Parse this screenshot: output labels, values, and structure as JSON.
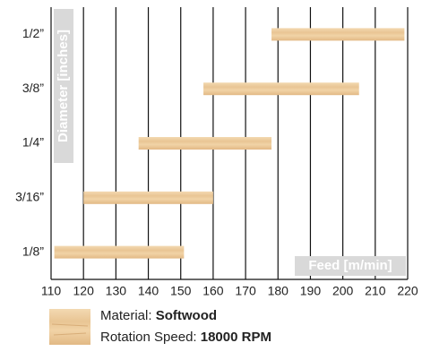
{
  "chart_data": {
    "type": "range-bar",
    "y_label": "Diameter [inches]",
    "x_label": "Feed [m/min]",
    "categories": [
      "1/8”",
      "3/16”",
      "1/4”",
      "3/8”",
      "1/2”"
    ],
    "values": [
      [
        111,
        151
      ],
      [
        120,
        160
      ],
      [
        137,
        178
      ],
      [
        157,
        205
      ],
      [
        178,
        219
      ]
    ],
    "xlim": [
      110,
      220
    ],
    "xticks": [
      110,
      120,
      130,
      140,
      150,
      160,
      170,
      180,
      190,
      200,
      210,
      220
    ],
    "grid": true,
    "legend": {
      "material_label": "Material:",
      "material": "Softwood",
      "speed_label": "Rotation Speed:",
      "speed": "18000 RPM"
    }
  }
}
